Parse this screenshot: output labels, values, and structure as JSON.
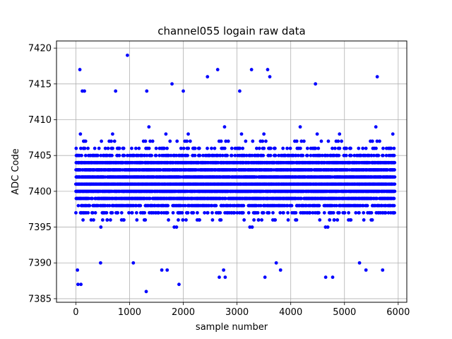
{
  "chart_data": {
    "type": "scatter",
    "title": "channel055 logain raw data",
    "xlabel": "sample number",
    "ylabel": "ADC Code",
    "xlim": [
      -360,
      6160
    ],
    "ylim": [
      7384.5,
      7421.0
    ],
    "xticks": [
      0,
      1000,
      2000,
      3000,
      4000,
      5000,
      6000
    ],
    "xtick_labels": [
      "0",
      "1000",
      "2000",
      "3000",
      "4000",
      "5000",
      "6000"
    ],
    "yticks": [
      7385,
      7390,
      7395,
      7400,
      7405,
      7410,
      7415,
      7420
    ],
    "ytick_labels": [
      "7385",
      "7390",
      "7395",
      "7400",
      "7405",
      "7410",
      "7415",
      "7420"
    ],
    "grid": true,
    "legend": "none",
    "marker_color": "#0000ff",
    "marker": "filled circle",
    "n_samples": 5930,
    "core_band": [
      7393,
      7410
    ],
    "annotated_points": [
      {
        "x": 30,
        "y": 7389
      },
      {
        "x": 40,
        "y": 7387
      },
      {
        "x": 75,
        "y": 7417
      },
      {
        "x": 95,
        "y": 7387
      },
      {
        "x": 120,
        "y": 7414
      },
      {
        "x": 160,
        "y": 7414
      },
      {
        "x": 460,
        "y": 7390
      },
      {
        "x": 740,
        "y": 7414
      },
      {
        "x": 960,
        "y": 7419
      },
      {
        "x": 1070,
        "y": 7390
      },
      {
        "x": 1310,
        "y": 7386
      },
      {
        "x": 1320,
        "y": 7414
      },
      {
        "x": 1600,
        "y": 7389
      },
      {
        "x": 1700,
        "y": 7389
      },
      {
        "x": 1790,
        "y": 7415
      },
      {
        "x": 1920,
        "y": 7387
      },
      {
        "x": 2000,
        "y": 7414
      },
      {
        "x": 2450,
        "y": 7416
      },
      {
        "x": 2640,
        "y": 7417
      },
      {
        "x": 2670,
        "y": 7388
      },
      {
        "x": 2750,
        "y": 7389
      },
      {
        "x": 2780,
        "y": 7388
      },
      {
        "x": 3050,
        "y": 7414
      },
      {
        "x": 3270,
        "y": 7417
      },
      {
        "x": 3520,
        "y": 7388
      },
      {
        "x": 3570,
        "y": 7417
      },
      {
        "x": 3610,
        "y": 7416
      },
      {
        "x": 3730,
        "y": 7390
      },
      {
        "x": 3810,
        "y": 7389
      },
      {
        "x": 4460,
        "y": 7415
      },
      {
        "x": 4650,
        "y": 7388
      },
      {
        "x": 4780,
        "y": 7388
      },
      {
        "x": 5280,
        "y": 7390
      },
      {
        "x": 5400,
        "y": 7389
      },
      {
        "x": 5610,
        "y": 7416
      },
      {
        "x": 5710,
        "y": 7389
      }
    ]
  }
}
